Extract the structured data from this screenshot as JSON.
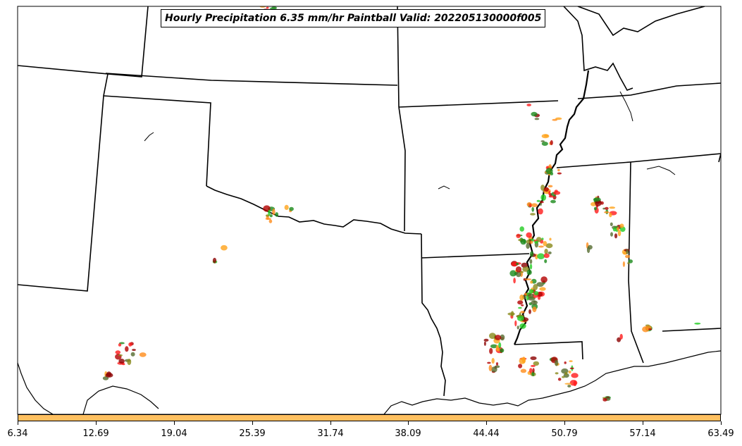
{
  "title": "Hourly Precipitation 6.35 mm/hr Paintball Valid: 202205130000f005",
  "colors": {
    "colorbar_fill": "#ffc060",
    "boundary": "#000000",
    "paintball_palette": [
      "#ff1a1a",
      "#b30000",
      "#22cc22",
      "#1a8a1a",
      "#ff8c1a",
      "#ffa31a",
      "#8a8a1a",
      "#8b0000",
      "#556b2f"
    ]
  },
  "colorbar": {
    "ticks": [
      "6.34",
      "12.69",
      "19.04",
      "25.39",
      "31.74",
      "38.09",
      "44.44",
      "50.79",
      "57.14",
      "63.49"
    ]
  }
}
